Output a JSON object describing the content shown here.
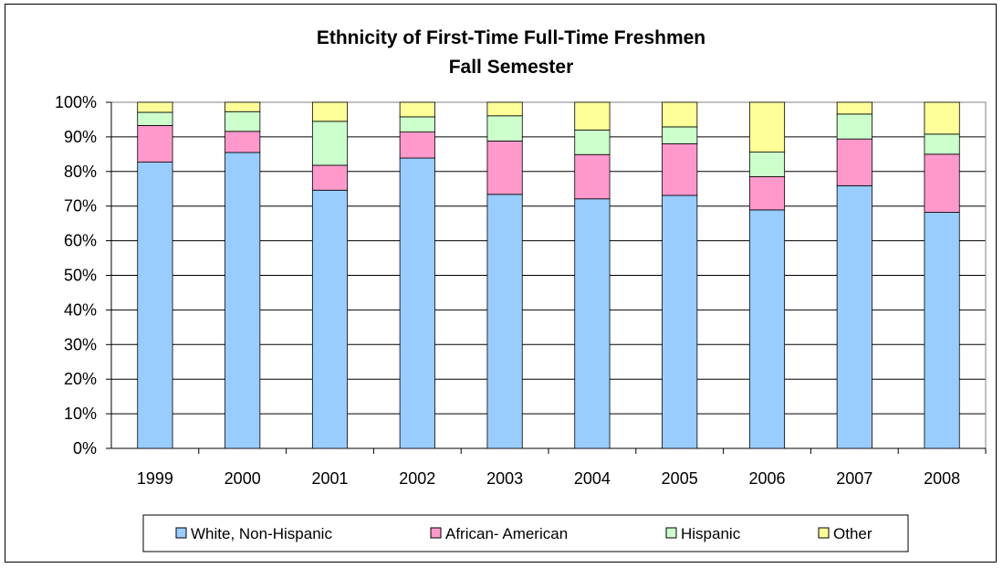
{
  "chart_data": {
    "type": "bar",
    "stacked": true,
    "title": "Ethnicity of First-Time Full-Time Freshmen",
    "subtitle": "Fall Semester",
    "xlabel": "",
    "ylabel": "",
    "ylim": [
      0,
      100
    ],
    "y_ticks": [
      "0%",
      "10%",
      "20%",
      "30%",
      "40%",
      "50%",
      "60%",
      "70%",
      "80%",
      "90%",
      "100%"
    ],
    "categories": [
      "1999",
      "2000",
      "2001",
      "2002",
      "2003",
      "2004",
      "2005",
      "2006",
      "2007",
      "2008"
    ],
    "series": [
      {
        "name": "White, Non-Hispanic",
        "color": "#99ccff",
        "values": [
          82.7,
          85.5,
          74.6,
          83.9,
          73.4,
          72.1,
          73.1,
          68.9,
          75.9,
          68.2
        ]
      },
      {
        "name": "African- American",
        "color": "#ff99cc",
        "values": [
          10.6,
          6.1,
          7.2,
          7.5,
          15.4,
          12.8,
          14.9,
          9.6,
          13.5,
          16.8
        ]
      },
      {
        "name": "Hispanic",
        "color": "#ccffcc",
        "values": [
          3.8,
          5.7,
          12.7,
          4.4,
          7.3,
          7.1,
          4.9,
          7.1,
          7.2,
          5.8
        ]
      },
      {
        "name": "Other",
        "color": "#ffff99",
        "values": [
          2.9,
          2.7,
          5.5,
          4.2,
          3.9,
          8.0,
          7.1,
          14.4,
          3.4,
          9.2
        ]
      }
    ],
    "grid": true,
    "plot_background": "#ffffff",
    "bar_stroke": "#000000",
    "legend_position": "bottom"
  }
}
